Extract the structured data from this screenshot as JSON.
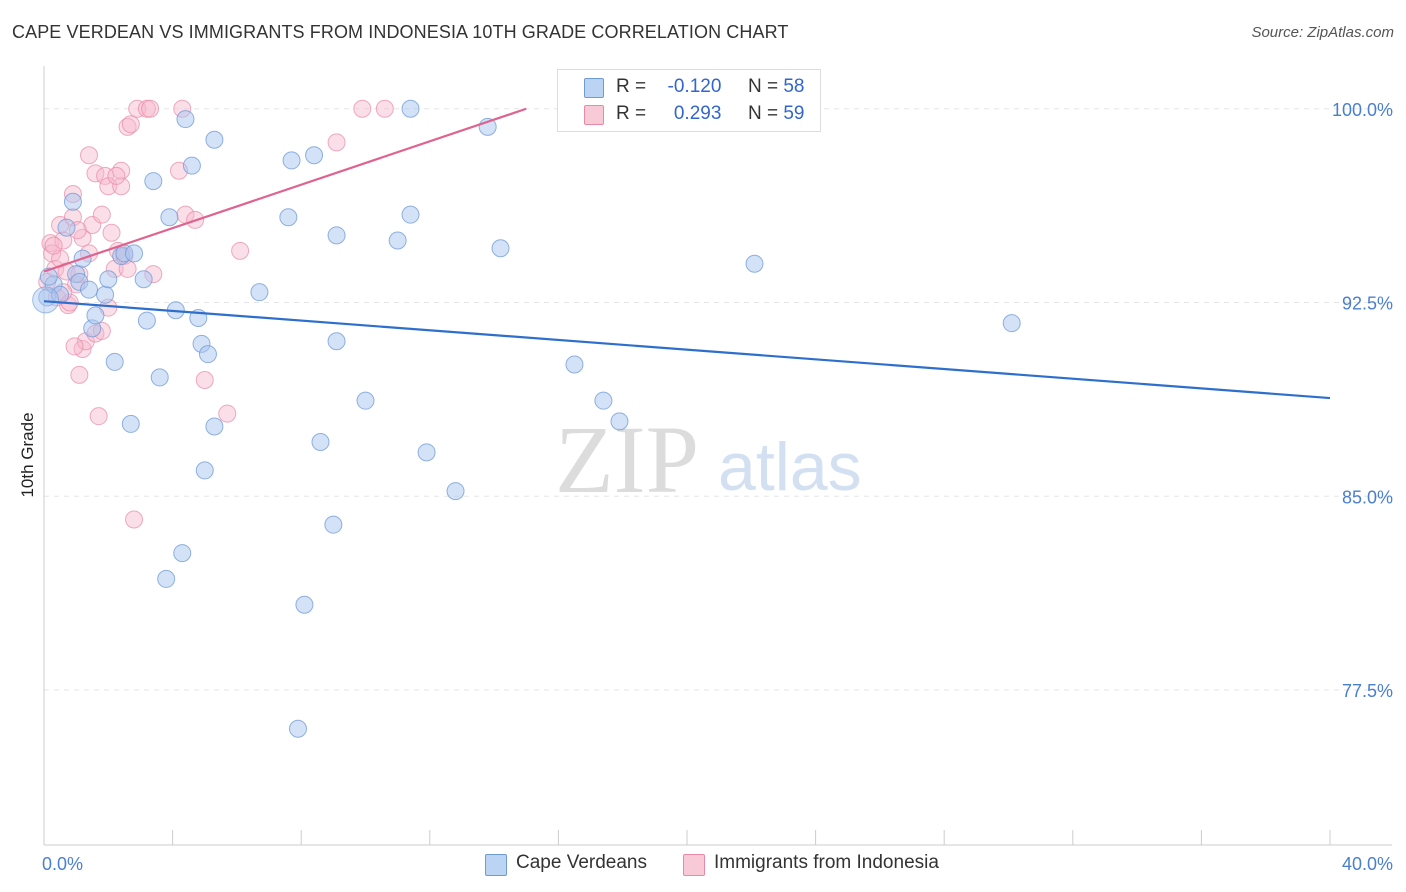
{
  "title": "CAPE VERDEAN VS IMMIGRANTS FROM INDONESIA 10TH GRADE CORRELATION CHART",
  "source": "Source: ZipAtlas.com",
  "watermark": {
    "zip": "ZIP",
    "atlas": "atlas"
  },
  "legend": {
    "r_label": "R =",
    "n_label": "N =",
    "blue": {
      "r": "-0.120",
      "n": "58"
    },
    "pink": {
      "r": "0.293",
      "n": "59"
    }
  },
  "bottom_legend": {
    "blue": "Cape Verdeans",
    "pink": "Immigrants from Indonesia"
  },
  "colors": {
    "blue_fill": "#a9c6ef",
    "blue_stroke": "#6e9ad6",
    "blue_line": "#2f6fcc",
    "pink_fill": "#f6b9cb",
    "pink_stroke": "#e889a6",
    "pink_line": "#e0628f",
    "axis_text": "#4a7fd0",
    "grid": "#e5e5e5"
  },
  "chart_data": {
    "type": "scatter",
    "title": "CAPE VERDEAN VS IMMIGRANTS FROM INDONESIA 10TH GRADE CORRELATION CHART",
    "xlabel": "",
    "ylabel": "10th Grade",
    "xlim": [
      0,
      40
    ],
    "ylim": [
      71.5,
      101.5
    ],
    "x_tick_labels": [
      "0.0%",
      "40.0%"
    ],
    "y_ticks": [
      100.0,
      92.5,
      85.0,
      77.5
    ],
    "y_tick_labels": [
      "100.0%",
      "92.5%",
      "85.0%",
      "77.5%"
    ],
    "series": [
      {
        "name": "Cape Verdeans",
        "r": -0.12,
        "n": 58,
        "trend": {
          "x": [
            0,
            40
          ],
          "y": [
            92.55,
            88.8
          ]
        },
        "points": [
          {
            "x": 0.1,
            "y": 92.7
          },
          {
            "x": 0.3,
            "y": 93.2
          },
          {
            "x": 0.5,
            "y": 92.8
          },
          {
            "x": 0.7,
            "y": 95.4
          },
          {
            "x": 0.9,
            "y": 96.4
          },
          {
            "x": 1.0,
            "y": 93.6
          },
          {
            "x": 1.1,
            "y": 93.3
          },
          {
            "x": 1.2,
            "y": 94.2
          },
          {
            "x": 1.4,
            "y": 93.0
          },
          {
            "x": 1.5,
            "y": 91.5
          },
          {
            "x": 1.6,
            "y": 92.0
          },
          {
            "x": 1.9,
            "y": 92.8
          },
          {
            "x": 2.0,
            "y": 93.4
          },
          {
            "x": 2.2,
            "y": 90.2
          },
          {
            "x": 2.4,
            "y": 94.3
          },
          {
            "x": 2.5,
            "y": 94.4
          },
          {
            "x": 2.7,
            "y": 87.8
          },
          {
            "x": 2.8,
            "y": 94.4
          },
          {
            "x": 3.1,
            "y": 93.4
          },
          {
            "x": 3.2,
            "y": 91.8
          },
          {
            "x": 3.4,
            "y": 97.2
          },
          {
            "x": 3.6,
            "y": 89.6
          },
          {
            "x": 3.8,
            "y": 81.8
          },
          {
            "x": 3.9,
            "y": 95.8
          },
          {
            "x": 4.1,
            "y": 92.2
          },
          {
            "x": 4.3,
            "y": 82.8
          },
          {
            "x": 4.4,
            "y": 99.6
          },
          {
            "x": 4.6,
            "y": 97.8
          },
          {
            "x": 4.8,
            "y": 91.9
          },
          {
            "x": 4.9,
            "y": 90.9
          },
          {
            "x": 5.0,
            "y": 86.0
          },
          {
            "x": 5.1,
            "y": 90.5
          },
          {
            "x": 5.3,
            "y": 98.8
          },
          {
            "x": 5.3,
            "y": 87.7
          },
          {
            "x": 6.7,
            "y": 92.9
          },
          {
            "x": 7.6,
            "y": 95.8
          },
          {
            "x": 7.7,
            "y": 98.0
          },
          {
            "x": 7.9,
            "y": 76.0
          },
          {
            "x": 8.1,
            "y": 80.8
          },
          {
            "x": 8.4,
            "y": 98.2
          },
          {
            "x": 8.6,
            "y": 87.1
          },
          {
            "x": 9.0,
            "y": 83.9
          },
          {
            "x": 9.1,
            "y": 95.1
          },
          {
            "x": 9.1,
            "y": 91.0
          },
          {
            "x": 10.0,
            "y": 88.7
          },
          {
            "x": 11.0,
            "y": 94.9
          },
          {
            "x": 11.4,
            "y": 95.9
          },
          {
            "x": 11.4,
            "y": 100.0
          },
          {
            "x": 11.9,
            "y": 86.7
          },
          {
            "x": 12.8,
            "y": 85.2
          },
          {
            "x": 13.8,
            "y": 99.3
          },
          {
            "x": 14.2,
            "y": 94.6
          },
          {
            "x": 16.5,
            "y": 90.1
          },
          {
            "x": 17.4,
            "y": 88.7
          },
          {
            "x": 17.9,
            "y": 87.9
          },
          {
            "x": 22.1,
            "y": 94.0
          },
          {
            "x": 30.1,
            "y": 91.7
          },
          {
            "x": 0.15,
            "y": 93.5
          }
        ]
      },
      {
        "name": "Immigrants from Indonesia",
        "r": 0.293,
        "n": 59,
        "trend": {
          "x": [
            0,
            15
          ],
          "y": [
            93.7,
            100.0
          ]
        },
        "points": [
          {
            "x": 0.1,
            "y": 93.3
          },
          {
            "x": 0.2,
            "y": 94.8
          },
          {
            "x": 0.25,
            "y": 94.4
          },
          {
            "x": 0.35,
            "y": 93.8
          },
          {
            "x": 0.4,
            "y": 92.7
          },
          {
            "x": 0.5,
            "y": 94.2
          },
          {
            "x": 0.5,
            "y": 95.5
          },
          {
            "x": 0.6,
            "y": 94.9
          },
          {
            "x": 0.7,
            "y": 93.7
          },
          {
            "x": 0.75,
            "y": 92.4
          },
          {
            "x": 0.8,
            "y": 92.5
          },
          {
            "x": 0.9,
            "y": 96.7
          },
          {
            "x": 0.9,
            "y": 95.8
          },
          {
            "x": 1.0,
            "y": 93.2
          },
          {
            "x": 1.1,
            "y": 93.6
          },
          {
            "x": 1.1,
            "y": 89.7
          },
          {
            "x": 1.2,
            "y": 95.0
          },
          {
            "x": 1.2,
            "y": 90.7
          },
          {
            "x": 1.3,
            "y": 91.0
          },
          {
            "x": 1.4,
            "y": 94.4
          },
          {
            "x": 1.4,
            "y": 98.2
          },
          {
            "x": 1.5,
            "y": 95.5
          },
          {
            "x": 1.6,
            "y": 97.5
          },
          {
            "x": 1.6,
            "y": 91.3
          },
          {
            "x": 1.7,
            "y": 88.1
          },
          {
            "x": 1.8,
            "y": 91.4
          },
          {
            "x": 1.8,
            "y": 95.9
          },
          {
            "x": 1.9,
            "y": 97.4
          },
          {
            "x": 2.0,
            "y": 97.0
          },
          {
            "x": 2.0,
            "y": 92.3
          },
          {
            "x": 2.1,
            "y": 95.2
          },
          {
            "x": 2.2,
            "y": 93.8
          },
          {
            "x": 2.3,
            "y": 94.5
          },
          {
            "x": 2.4,
            "y": 97.6
          },
          {
            "x": 2.4,
            "y": 97.0
          },
          {
            "x": 2.5,
            "y": 94.3
          },
          {
            "x": 2.6,
            "y": 93.8
          },
          {
            "x": 2.6,
            "y": 99.3
          },
          {
            "x": 2.7,
            "y": 99.4
          },
          {
            "x": 2.8,
            "y": 84.1
          },
          {
            "x": 2.9,
            "y": 100.0
          },
          {
            "x": 3.2,
            "y": 100.0
          },
          {
            "x": 3.3,
            "y": 100.0
          },
          {
            "x": 3.4,
            "y": 93.6
          },
          {
            "x": 4.2,
            "y": 97.6
          },
          {
            "x": 4.3,
            "y": 100.0
          },
          {
            "x": 4.4,
            "y": 95.9
          },
          {
            "x": 4.7,
            "y": 95.7
          },
          {
            "x": 5.0,
            "y": 89.5
          },
          {
            "x": 5.7,
            "y": 88.2
          },
          {
            "x": 6.1,
            "y": 94.5
          },
          {
            "x": 9.1,
            "y": 98.7
          },
          {
            "x": 9.9,
            "y": 100.0
          },
          {
            "x": 10.6,
            "y": 100.0
          },
          {
            "x": 0.6,
            "y": 92.9
          },
          {
            "x": 1.05,
            "y": 95.3
          },
          {
            "x": 0.3,
            "y": 94.7
          },
          {
            "x": 0.95,
            "y": 90.8
          },
          {
            "x": 2.25,
            "y": 97.4
          }
        ]
      }
    ]
  }
}
